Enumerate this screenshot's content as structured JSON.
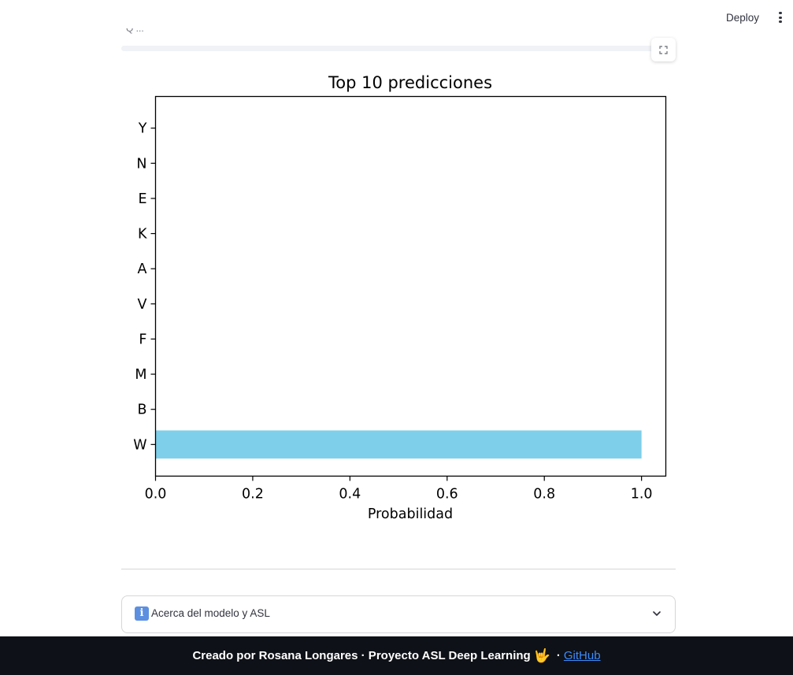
{
  "header": {
    "deploy_label": "Deploy",
    "menu_icon": "kebab-menu-icon"
  },
  "partial_caption": "Q  ...",
  "chart_data": {
    "type": "bar",
    "orientation": "horizontal",
    "title": "Top 10 predicciones",
    "xlabel": "Probabilidad",
    "ylabel": "",
    "categories": [
      "W",
      "B",
      "M",
      "F",
      "V",
      "A",
      "K",
      "E",
      "N",
      "Y"
    ],
    "values": [
      1.0,
      0.0,
      0.0,
      0.0,
      0.0,
      0.0,
      0.0,
      0.0,
      0.0,
      0.0
    ],
    "xlim": [
      0.0,
      1.05
    ],
    "xticks": [
      "0.0",
      "0.2",
      "0.4",
      "0.6",
      "0.8",
      "1.0"
    ],
    "bar_color": "#7ecfe9",
    "grid": false
  },
  "expander": {
    "label": "Acerca del modelo y ASL",
    "icon": "info-icon"
  },
  "footer": {
    "text": "Creado por Rosana Longares · Proyecto ASL Deep Learning",
    "emoji": "🤟",
    "separator": "·",
    "link_label": "GitHub"
  }
}
